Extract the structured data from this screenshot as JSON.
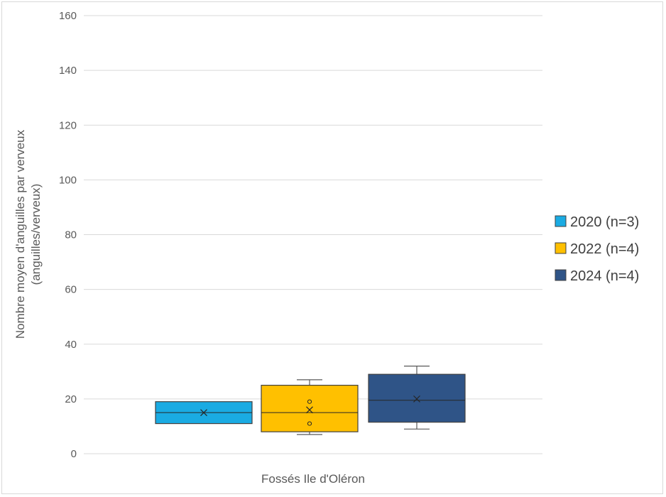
{
  "chart_data": {
    "type": "box",
    "xlabel": "Fossés Ile d'Oléron",
    "ylabel_line1": "Nombre moyen d'anguilles par verveux",
    "ylabel_line2": "(anguilles/verveux)",
    "ylim": [
      0,
      160
    ],
    "yticks": [
      0,
      20,
      40,
      60,
      80,
      100,
      120,
      140,
      160
    ],
    "grid": true,
    "legend_position": "right",
    "series": [
      {
        "name": "2020 (n=3)",
        "color": "#1aabe3",
        "min": 11,
        "q1": 11,
        "median": 15,
        "q3": 19,
        "max": 19,
        "mean": 15,
        "outliers": []
      },
      {
        "name": "2022 (n=4)",
        "color": "#ffc000",
        "min": 7,
        "q1": 8,
        "median": 15,
        "q3": 25,
        "max": 27,
        "mean": 16,
        "outliers": [
          11,
          19
        ]
      },
      {
        "name": "2024 (n=4)",
        "color": "#2f5487",
        "min": 9,
        "q1": 11.5,
        "median": 19.5,
        "q3": 29,
        "max": 32,
        "mean": 20,
        "outliers": []
      }
    ]
  }
}
